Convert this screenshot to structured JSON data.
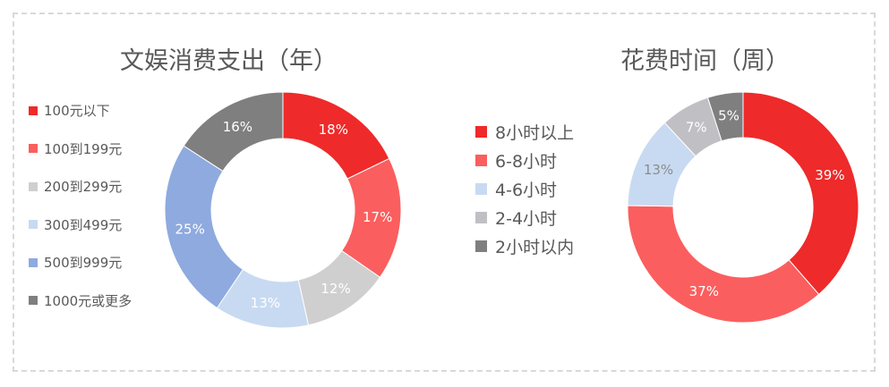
{
  "chart_data": [
    {
      "type": "pie",
      "title": "文娱消费支出（年）",
      "categories": [
        "100元以下",
        "100到199元",
        "200到299元",
        "300到499元",
        "500到999元",
        "1000元或更多"
      ],
      "values": [
        18,
        17,
        12,
        13,
        25,
        16
      ],
      "labels": [
        "18%",
        "17%",
        "12%",
        "13%",
        "25%",
        "16%"
      ],
      "colors": [
        "#ee2a2a",
        "#fb5e5e",
        "#d0cfcf",
        "#c8daf2",
        "#8eaadf",
        "#7f7f7f"
      ],
      "label_colors": [
        "#ffffff",
        "#ffffff",
        "#ffffff",
        "#ffffff",
        "#ffffff",
        "#ffffff"
      ],
      "legend_position": "left",
      "donut": true
    },
    {
      "type": "pie",
      "title": "花费时间（周）",
      "categories": [
        "8小时以上",
        "6-8小时",
        "4-6小时",
        "2-4小时",
        "2小时以内"
      ],
      "values": [
        39,
        37,
        13,
        7,
        5
      ],
      "labels": [
        "39%",
        "37%",
        "13%",
        "7%",
        "5%"
      ],
      "colors": [
        "#ee2a2a",
        "#fb5e5e",
        "#c8daf2",
        "#c0c0c4",
        "#7f7f7f"
      ],
      "label_colors": [
        "#ffffff",
        "#ffffff",
        "#8c8c8c",
        "#ffffff",
        "#ffffff"
      ],
      "legend_position": "left",
      "donut": true
    }
  ]
}
